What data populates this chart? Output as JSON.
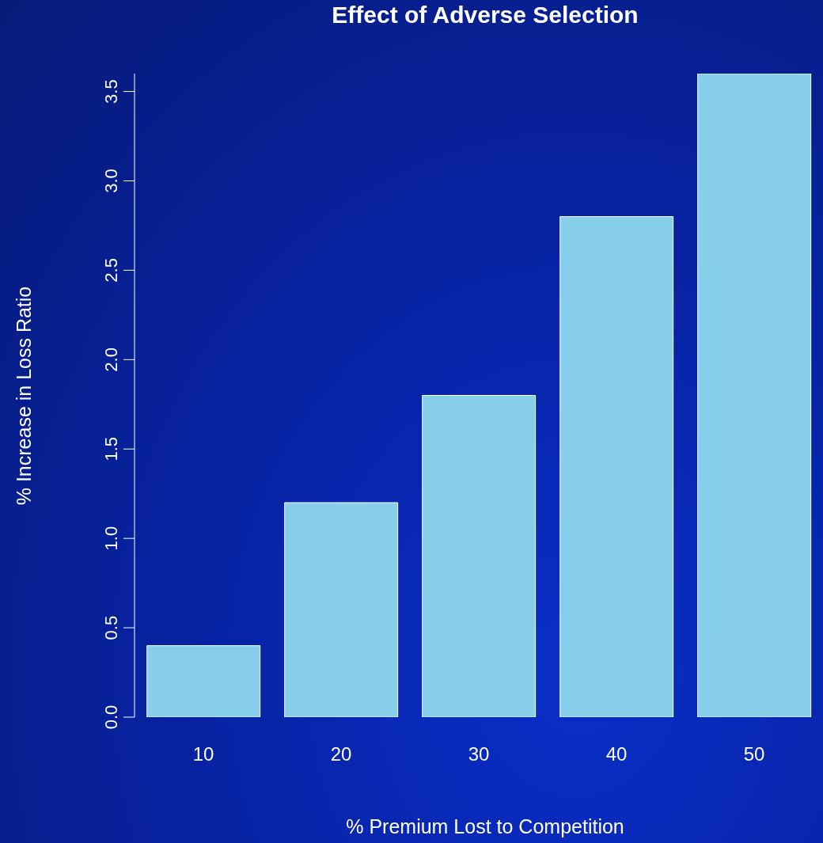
{
  "chart_data": {
    "type": "bar",
    "title": "Effect of Adverse Selection",
    "xlabel": "% Premium Lost to Competition",
    "ylabel": "% Increase in Loss Ratio",
    "categories": [
      "10",
      "20",
      "30",
      "40",
      "50"
    ],
    "values": [
      0.4,
      1.2,
      1.8,
      2.8,
      3.6
    ],
    "color": "#87ceeb",
    "ylim": [
      0,
      3.6
    ],
    "yticks": [
      {
        "value": 0,
        "label": "0.0"
      },
      {
        "value": 0.5,
        "label": "0.5"
      },
      {
        "value": 1,
        "label": "1.0"
      },
      {
        "value": 1.5,
        "label": "1.5"
      },
      {
        "value": 2,
        "label": "2.0"
      },
      {
        "value": 2.5,
        "label": "2.5"
      },
      {
        "value": 3,
        "label": "3.0"
      },
      {
        "value": 3.5,
        "label": "3.5"
      }
    ],
    "grid": false,
    "legend": false
  }
}
